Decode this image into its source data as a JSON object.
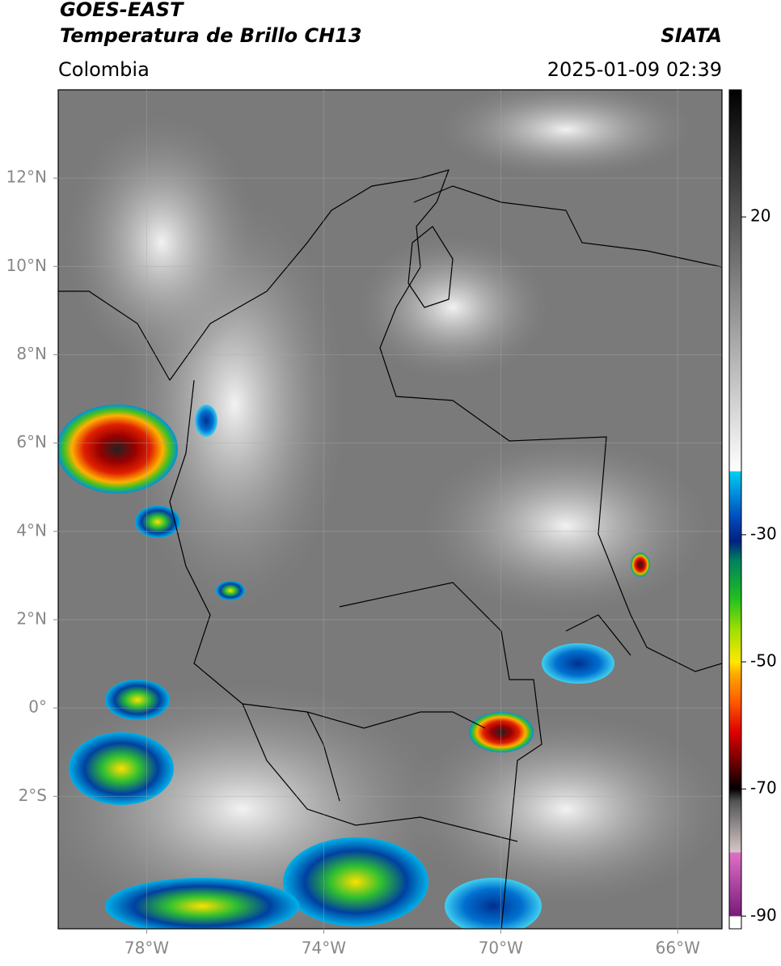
{
  "header": {
    "title": "GOES-EAST",
    "subtitle": "Temperatura de Brillo CH13",
    "source": "SIATA",
    "region": "Colombia",
    "timestamp": "2025-01-09 02:39"
  },
  "map": {
    "lonlim": [
      -80,
      -65
    ],
    "latlim": [
      -5,
      14
    ],
    "lon_ticks": [
      {
        "value": -78,
        "label": "78°W"
      },
      {
        "value": -74,
        "label": "74°W"
      },
      {
        "value": -70,
        "label": "70°W"
      },
      {
        "value": -66,
        "label": "66°W"
      }
    ],
    "lat_ticks": [
      {
        "value": 12,
        "label": "12°N"
      },
      {
        "value": 10,
        "label": "10°N"
      },
      {
        "value": 8,
        "label": "8°N"
      },
      {
        "value": 6,
        "label": "6°N"
      },
      {
        "value": 4,
        "label": "4°N"
      },
      {
        "value": 2,
        "label": "2°N"
      },
      {
        "value": 0,
        "label": "0°"
      },
      {
        "value": -2,
        "label": "2°S"
      }
    ],
    "grid": true
  },
  "colorbar": {
    "lim": [
      -92,
      40
    ],
    "ticks": [
      20,
      -30,
      -50,
      -70,
      -90
    ],
    "stops": [
      {
        "value": -92,
        "color": "#ffffff"
      },
      {
        "value": -90,
        "color": "#ffffff"
      },
      {
        "value": -90,
        "color": "#7a1a7a"
      },
      {
        "value": -80,
        "color": "#e070c8"
      },
      {
        "value": -80,
        "color": "#d8c8c8"
      },
      {
        "value": -72,
        "color": "#555555"
      },
      {
        "value": -70,
        "color": "#000000"
      },
      {
        "value": -66,
        "color": "#6a0000"
      },
      {
        "value": -61,
        "color": "#e00000"
      },
      {
        "value": -56,
        "color": "#ff6000"
      },
      {
        "value": -52,
        "color": "#ffa800"
      },
      {
        "value": -50,
        "color": "#ffe800"
      },
      {
        "value": -45,
        "color": "#a0e000"
      },
      {
        "value": -40,
        "color": "#20c020"
      },
      {
        "value": -34,
        "color": "#008060"
      },
      {
        "value": -31,
        "color": "#002080"
      },
      {
        "value": -27,
        "color": "#0050c0"
      },
      {
        "value": -23,
        "color": "#0098e0"
      },
      {
        "value": -20,
        "color": "#00d0f0"
      },
      {
        "value": -20,
        "color": "#ffffff"
      },
      {
        "value": 40,
        "color": "#000000"
      }
    ]
  }
}
